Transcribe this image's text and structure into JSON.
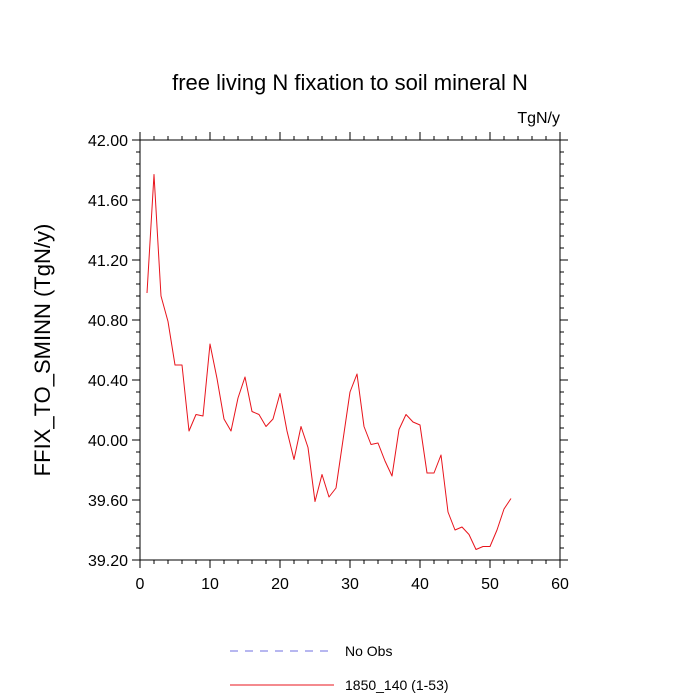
{
  "chart_data": {
    "type": "line",
    "title": "free living N fixation to soil mineral N",
    "units": "TgN/y",
    "xlabel": "",
    "ylabel": "FFIX_TO_SMINN  (TgN/y)",
    "xlim": [
      0,
      60
    ],
    "ylim": [
      39.2,
      42.0
    ],
    "x_ticks": [
      0,
      10,
      20,
      30,
      40,
      50,
      60
    ],
    "x_tick_labels": [
      "0",
      "10",
      "20",
      "30",
      "40",
      "50",
      "60"
    ],
    "y_ticks": [
      39.2,
      39.6,
      40.0,
      40.4,
      40.8,
      41.2,
      41.6,
      42.0
    ],
    "y_tick_labels": [
      "39.20",
      "39.60",
      "40.00",
      "40.40",
      "40.80",
      "41.20",
      "41.60",
      "42.00"
    ],
    "legend_position": "bottom",
    "series": [
      {
        "name": "No Obs",
        "color": "#6f6fe0",
        "style": "dashed",
        "x": [],
        "values": []
      },
      {
        "name": "1850_140 (1-53)",
        "color": "#e8141c",
        "style": "solid",
        "x": [
          1,
          2,
          3,
          4,
          5,
          6,
          7,
          8,
          9,
          10,
          11,
          12,
          13,
          14,
          15,
          16,
          17,
          18,
          19,
          20,
          21,
          22,
          23,
          24,
          25,
          26,
          27,
          28,
          29,
          30,
          31,
          32,
          33,
          34,
          35,
          36,
          37,
          38,
          39,
          40,
          41,
          42,
          43,
          44,
          45,
          46,
          47,
          48,
          49,
          50,
          51,
          52,
          53
        ],
        "values": [
          40.98,
          41.77,
          40.96,
          40.79,
          40.5,
          40.5,
          40.06,
          40.17,
          40.16,
          40.64,
          40.41,
          40.14,
          40.06,
          40.28,
          40.42,
          40.19,
          40.17,
          40.09,
          40.14,
          40.31,
          40.06,
          39.87,
          40.09,
          39.95,
          39.59,
          39.77,
          39.62,
          39.68,
          40.0,
          40.32,
          40.44,
          40.09,
          39.97,
          39.98,
          39.86,
          39.76,
          40.07,
          40.17,
          40.12,
          40.1,
          39.78,
          39.78,
          39.9,
          39.52,
          39.4,
          39.42,
          39.37,
          39.27,
          39.29,
          39.29,
          39.4,
          39.54,
          39.61
        ]
      }
    ]
  }
}
